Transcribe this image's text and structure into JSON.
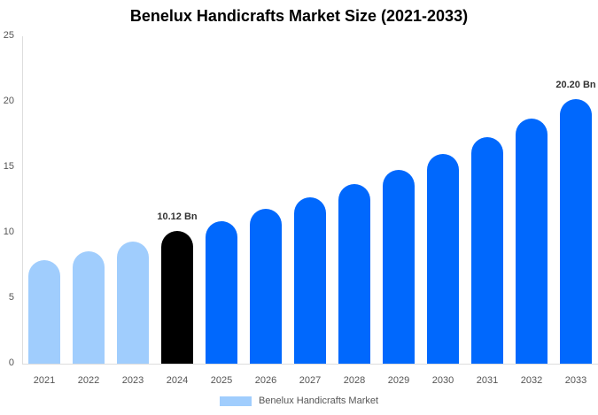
{
  "chart_data": {
    "type": "bar",
    "title": "Benelux Handicrafts Market Size (2021-2033)",
    "xlabel": "",
    "ylabel": "",
    "ylim": [
      0,
      25
    ],
    "yticks": [
      0,
      5,
      10,
      15,
      20,
      25
    ],
    "grid": false,
    "legend_position": "bottom",
    "categories": [
      "2021",
      "2022",
      "2023",
      "2024",
      "2025",
      "2026",
      "2027",
      "2028",
      "2029",
      "2030",
      "2031",
      "2032",
      "2033"
    ],
    "series": [
      {
        "name": "Benelux Handicrafts Market",
        "values": [
          7.9,
          8.6,
          9.3,
          10.12,
          10.9,
          11.8,
          12.7,
          13.7,
          14.8,
          16.0,
          17.3,
          18.7,
          20.2
        ]
      }
    ],
    "bar_colors": [
      "#a0cdfd",
      "#a0cdfd",
      "#a0cdfd",
      "#000000",
      "#0068fd",
      "#0068fd",
      "#0068fd",
      "#0068fd",
      "#0068fd",
      "#0068fd",
      "#0068fd",
      "#0068fd",
      "#0068fd"
    ],
    "annotations": [
      {
        "category": "2024",
        "text": "10.12 Bn"
      },
      {
        "category": "2033",
        "text": "20.20 Bn"
      }
    ]
  },
  "legend": {
    "label": "Benelux Handicrafts Market",
    "color": "#a0cdfd"
  }
}
